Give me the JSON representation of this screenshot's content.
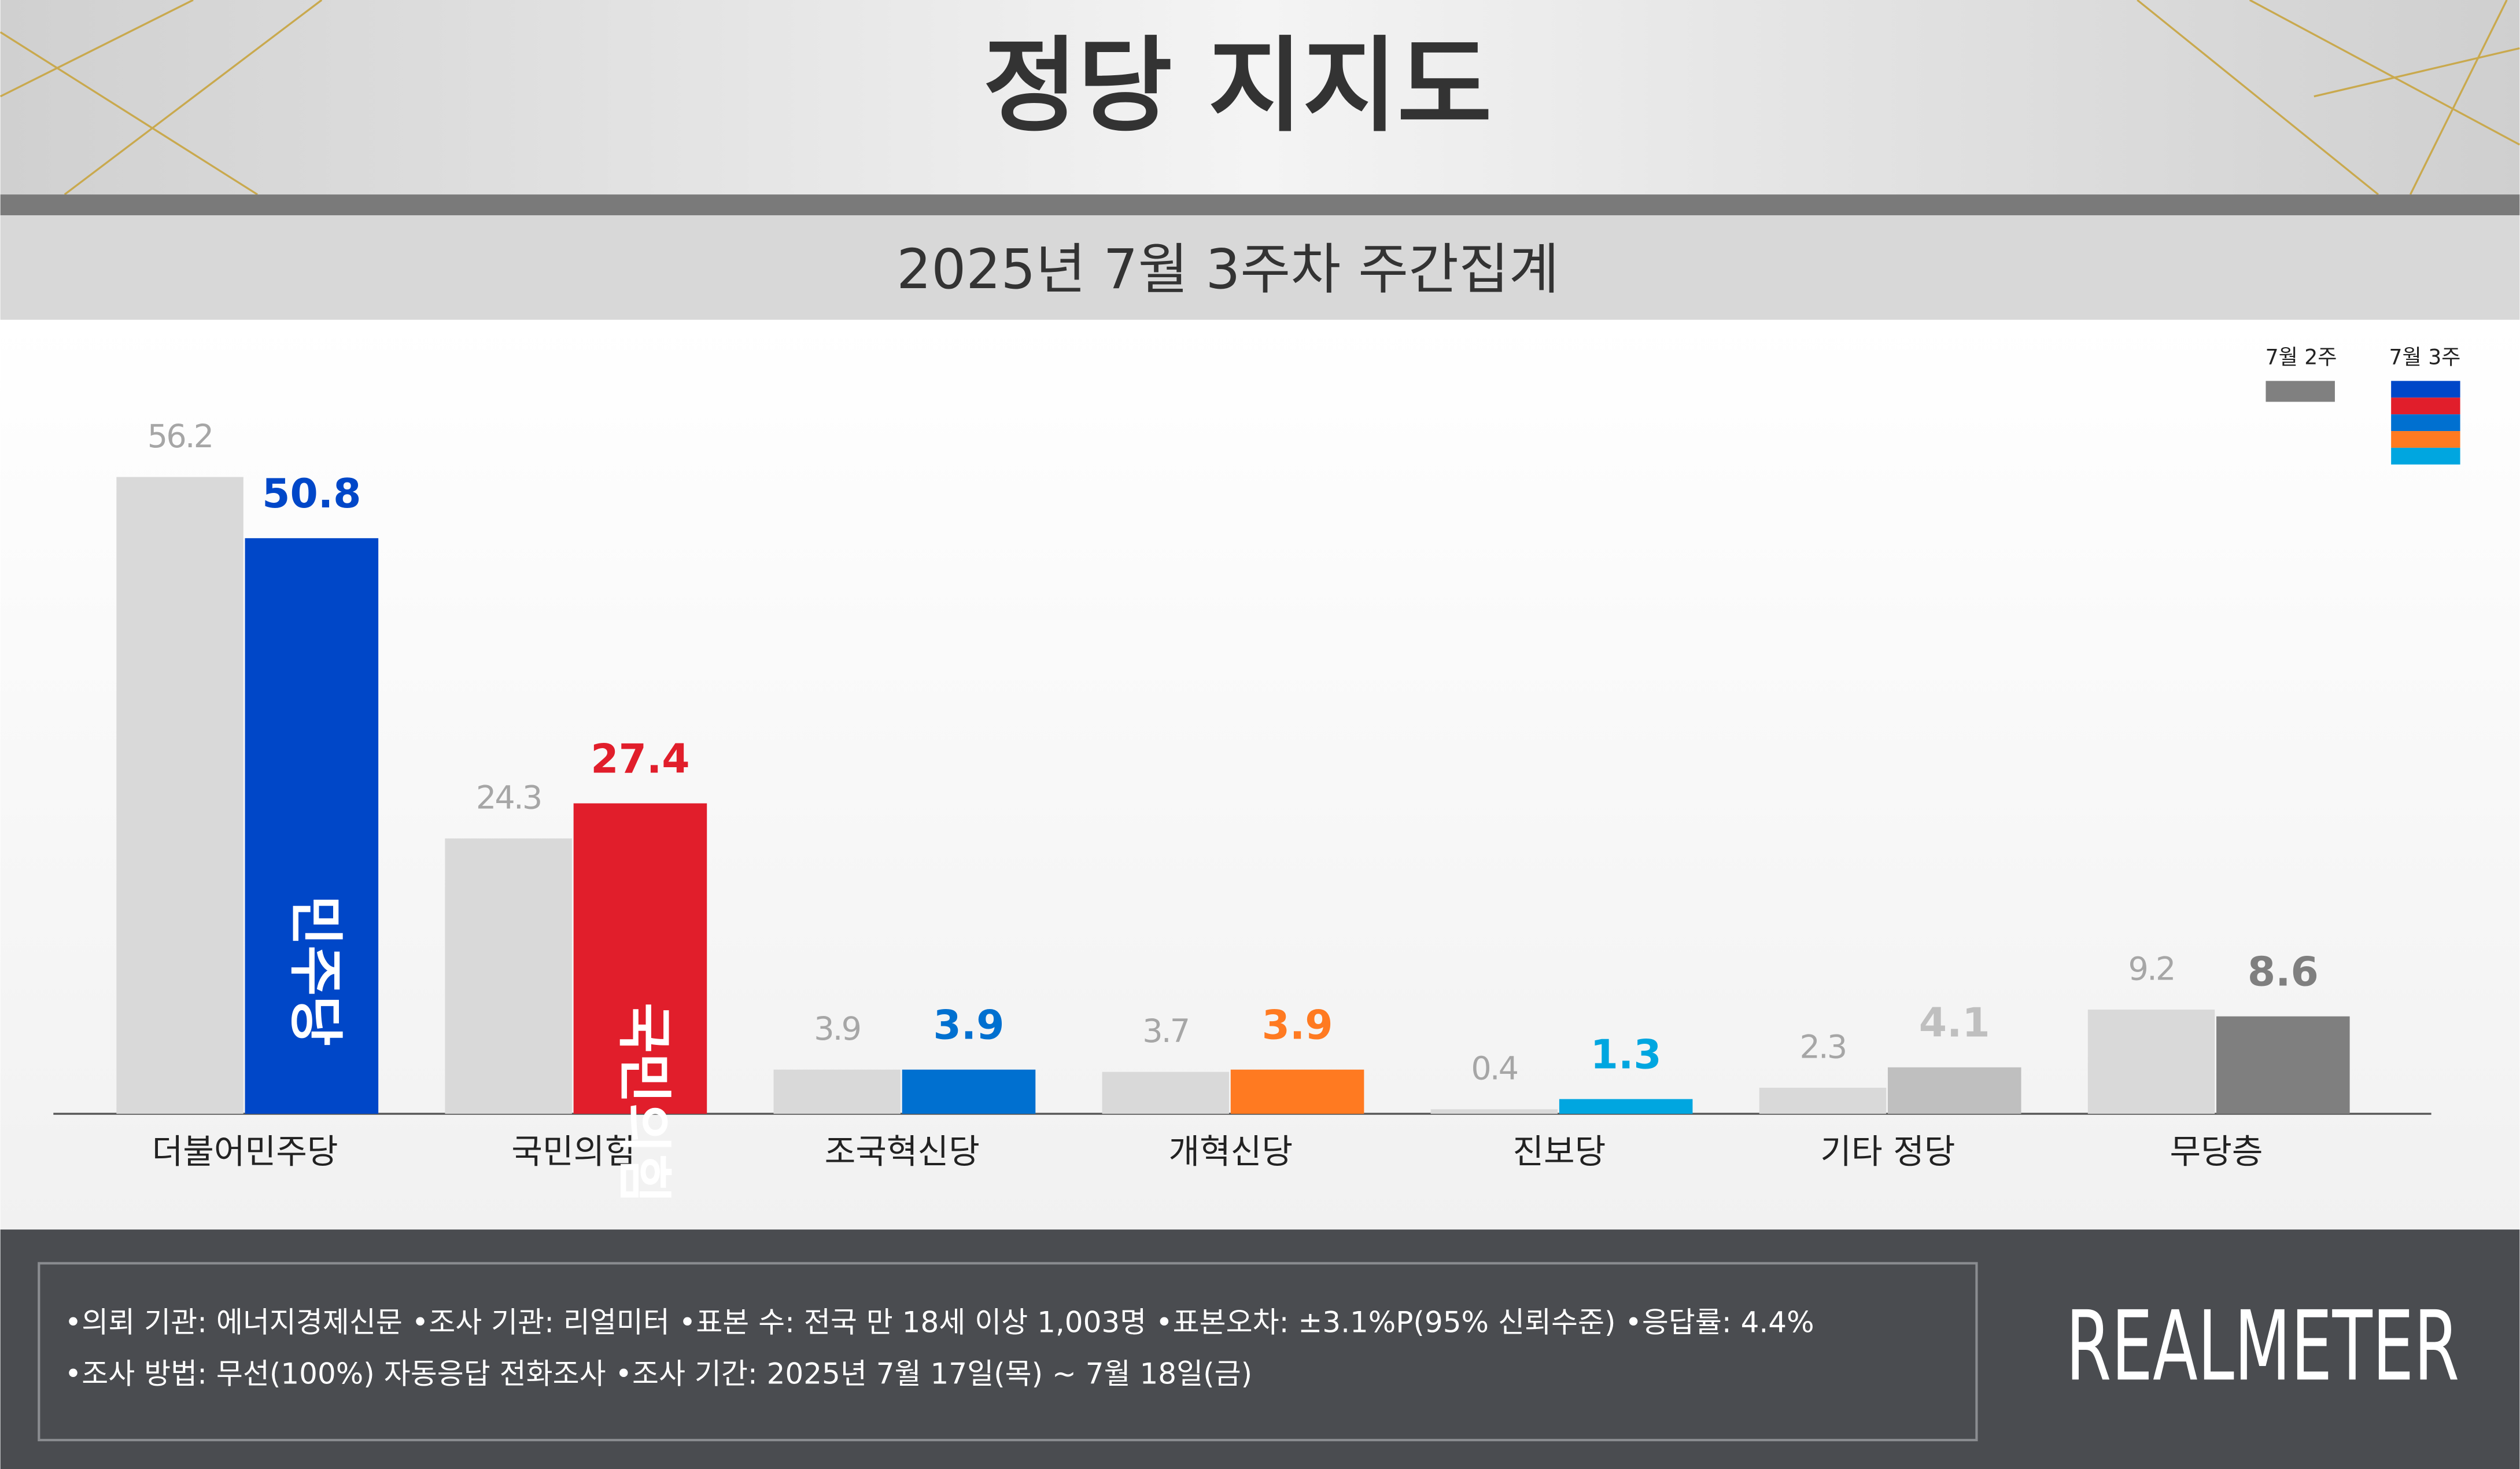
{
  "chart_data": {
    "type": "bar",
    "title": "정당 지지도",
    "subtitle": "2025년 7월 3주차 주간집계",
    "categories": [
      "더불어민주당",
      "국민의힘",
      "조국혁신당",
      "개혁신당",
      "진보당",
      "기타 정당",
      "무당층"
    ],
    "series": [
      {
        "name": "7월 2주",
        "color": "#d9d9d9",
        "legend_color": "#808080",
        "label_color": "#a6a6a6",
        "values": [
          56.2,
          24.3,
          3.9,
          3.7,
          0.4,
          2.3,
          9.2
        ]
      },
      {
        "name": "7월 3주",
        "colors": [
          "#0047c8",
          "#e11e2b",
          "#0070d0",
          "#ff7a21",
          "#00a6e0",
          "#bfbfbf",
          "#7f7f7f"
        ],
        "legend_colors": [
          "#0047c8",
          "#e11e2b",
          "#0070d0",
          "#ff7a21",
          "#00a6e0"
        ],
        "values": [
          50.8,
          27.4,
          3.9,
          3.9,
          1.3,
          4.1,
          8.6
        ]
      }
    ],
    "bar_logos": [
      "민주당",
      "국민의힘",
      null,
      null,
      null,
      null,
      null
    ],
    "ylim": [
      0,
      60
    ],
    "notes": [
      "•의뢰 기관: 에너지경제신문  •조사 기관: 리얼미터 •표본 수: 전국 만 18세 이상 1,003명 •표본오차: ±3.1%P(95% 신뢰수준) •응답률: 4.4%",
      "•조사 방법: 무선(100%) 자동응답 전화조사 •조사 기간: 2025년 7월 17일(목) ~ 7월 18일(금)"
    ],
    "source": "REALMETER"
  }
}
